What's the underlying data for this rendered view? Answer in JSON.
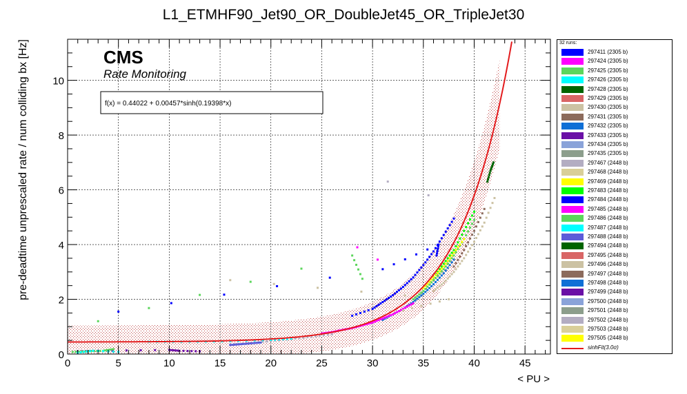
{
  "chart_data": {
    "type": "scatter",
    "title": "L1_ETMHF90_Jet90_OR_DoubleJet45_OR_TripleJet30",
    "xlabel": "< PU >",
    "ylabel": "pre-deadtime unprescaled rate / num colliding bx [Hz]",
    "xlim": [
      0,
      47.5
    ],
    "ylim": [
      0,
      11.5
    ],
    "xticks": [
      0,
      5,
      10,
      15,
      20,
      25,
      30,
      35,
      40,
      45
    ],
    "yticks": [
      0,
      2,
      4,
      6,
      8,
      10
    ],
    "grid": true,
    "cms_label": "CMS",
    "cms_sublabel": "Rate Monitoring",
    "fit_formula": "f(x) = 0.44022 + 0.00457*sinh(0.19398*x)",
    "fit": {
      "a": 0.44022,
      "b": 0.00457,
      "c": 0.19398,
      "band_sigma": 3.0,
      "color": "#e31a1c"
    },
    "legend_placement": "right",
    "legend_header": "32 runs:",
    "series": [
      {
        "name": "297411 (2305 b)",
        "color": "#0000ff"
      },
      {
        "name": "297424 (2305 b)",
        "color": "#ff00ff"
      },
      {
        "name": "297425 (2305 b)",
        "color": "#5cd65c"
      },
      {
        "name": "297426 (2305 b)",
        "color": "#00ffff"
      },
      {
        "name": "297428 (2305 b)",
        "color": "#006400"
      },
      {
        "name": "297429 (2305 b)",
        "color": "#d96666"
      },
      {
        "name": "297430 (2305 b)",
        "color": "#ccc2a3"
      },
      {
        "name": "297431 (2305 b)",
        "color": "#8c6b5c"
      },
      {
        "name": "297432 (2305 b)",
        "color": "#0f6fd6"
      },
      {
        "name": "297433 (2305 b)",
        "color": "#6a0fa6"
      },
      {
        "name": "297434 (2305 b)",
        "color": "#8aa3d9"
      },
      {
        "name": "297435 (2305 b)",
        "color": "#8c9e8c"
      },
      {
        "name": "297467 (2448 b)",
        "color": "#b3adc2"
      },
      {
        "name": "297468 (2448 b)",
        "color": "#d9cf99"
      },
      {
        "name": "297469 (2448 b)",
        "color": "#ffff00"
      },
      {
        "name": "297483 (2448 b)",
        "color": "#00ff00"
      },
      {
        "name": "297484 (2448 b)",
        "color": "#0000ff"
      },
      {
        "name": "297485 (2448 b)",
        "color": "#ff00ff"
      },
      {
        "name": "297486 (2448 b)",
        "color": "#5cd65c"
      },
      {
        "name": "297487 (2448 b)",
        "color": "#00ffff"
      },
      {
        "name": "297488 (2448 b)",
        "color": "#5c5cd9"
      },
      {
        "name": "297494 (2448 b)",
        "color": "#006400"
      },
      {
        "name": "297495 (2448 b)",
        "color": "#d96666"
      },
      {
        "name": "297496 (2448 b)",
        "color": "#ccc2a3"
      },
      {
        "name": "297497 (2448 b)",
        "color": "#8c6b5c"
      },
      {
        "name": "297498 (2448 b)",
        "color": "#0f6fd6"
      },
      {
        "name": "297499 (2448 b)",
        "color": "#6a0fa6"
      },
      {
        "name": "297500 (2448 b)",
        "color": "#8aa3d9"
      },
      {
        "name": "297501 (2448 b)",
        "color": "#8c9e8c"
      },
      {
        "name": "297502 (2448 b)",
        "color": "#b3adc2"
      },
      {
        "name": "297503 (2448 b)",
        "color": "#d9cf99"
      },
      {
        "name": "297505 (2448 b)",
        "color": "#ffff00"
      }
    ],
    "fit_legend_label": "sinhFit(3.0σ)",
    "point_groups": [
      {
        "color": "#0000ff",
        "x": [
          28,
          30,
          31,
          32,
          33,
          34,
          35,
          36,
          37,
          38
        ],
        "y": [
          1.4,
          1.65,
          1.9,
          2.15,
          2.45,
          2.8,
          3.25,
          3.75,
          4.35,
          4.95
        ]
      },
      {
        "color": "#0f6fd6",
        "x": [
          31,
          32,
          33,
          34,
          35,
          36,
          37,
          38
        ],
        "y": [
          1.25,
          1.45,
          1.65,
          1.9,
          2.2,
          2.55,
          2.95,
          3.45
        ]
      },
      {
        "color": "#ff00ff",
        "x": [
          25,
          26,
          27,
          28,
          29,
          30,
          31,
          32,
          33,
          34
        ],
        "y": [
          0.75,
          0.8,
          0.88,
          0.95,
          1.05,
          1.15,
          1.3,
          1.45,
          1.65,
          1.85
        ]
      },
      {
        "color": "#5cd65c",
        "x": [
          34,
          35,
          36,
          37,
          38,
          39,
          40
        ],
        "y": [
          2.0,
          2.3,
          2.7,
          3.1,
          3.6,
          4.2,
          4.9
        ]
      },
      {
        "color": "#00ff00",
        "x": [
          36,
          37,
          38,
          39,
          40
        ],
        "y": [
          2.8,
          3.3,
          3.8,
          4.5,
          5.2
        ]
      },
      {
        "color": "#ffff00",
        "x": [
          35,
          36,
          37,
          38,
          39
        ],
        "y": [
          2.4,
          2.8,
          3.2,
          3.7,
          4.2
        ]
      },
      {
        "color": "#006400",
        "x": [
          41.3,
          41.6,
          41.9
        ],
        "y": [
          6.3,
          6.7,
          7.0
        ]
      },
      {
        "color": "#8c6b5c",
        "x": [
          38,
          39,
          40,
          41
        ],
        "y": [
          3.2,
          3.8,
          4.5,
          5.3
        ]
      },
      {
        "color": "#ccc2a3",
        "x": [
          36,
          37,
          38,
          39,
          40,
          41,
          42
        ],
        "y": [
          2.3,
          2.6,
          3.0,
          3.5,
          4.1,
          4.8,
          5.7
        ]
      },
      {
        "color": "#b3adc2",
        "x": [
          16,
          18,
          20,
          22,
          24,
          26
        ],
        "y": [
          0.35,
          0.4,
          0.48,
          0.55,
          0.63,
          0.72
        ]
      },
      {
        "color": "#5c5cd9",
        "x": [
          16,
          17,
          18,
          19
        ],
        "y": [
          0.33,
          0.36,
          0.39,
          0.42
        ]
      },
      {
        "color": "#00ffff",
        "x": [
          8,
          12,
          16,
          20,
          22
        ],
        "y": [
          0.45,
          0.45,
          0.47,
          0.52,
          0.56
        ]
      },
      {
        "color": "#6a0fa6",
        "x": [
          1,
          3,
          10,
          11,
          13
        ],
        "y": [
          0.1,
          0.12,
          0.15,
          0.12,
          0.1
        ]
      },
      {
        "color": "#5cd65c",
        "x": [
          0.5,
          2,
          3.5,
          4.5
        ],
        "y": [
          0.08,
          0.1,
          0.12,
          0.18
        ]
      },
      {
        "color": "#00ffff",
        "x": [
          1,
          2.5,
          5
        ],
        "y": [
          0.05,
          0.12,
          0.08
        ]
      },
      {
        "color": "#0000ff",
        "x": [
          5,
          31,
          36.5,
          36.3
        ],
        "y": [
          1.55,
          3.1,
          4.0,
          3.6
        ]
      },
      {
        "color": "#ff00ff",
        "x": [
          28.5,
          30.5
        ],
        "y": [
          3.9,
          3.45
        ]
      },
      {
        "color": "#5cd65c",
        "x": [
          3,
          28,
          29
        ],
        "y": [
          1.2,
          3.6,
          2.75
        ]
      },
      {
        "color": "#b3adc2",
        "x": [
          31.5,
          35.5
        ],
        "y": [
          6.3,
          5.8
        ]
      },
      {
        "color": "#ccc2a3",
        "x": [
          33,
          37.5,
          16
        ],
        "y": [
          1.6,
          2.0,
          2.7
        ]
      }
    ]
  }
}
